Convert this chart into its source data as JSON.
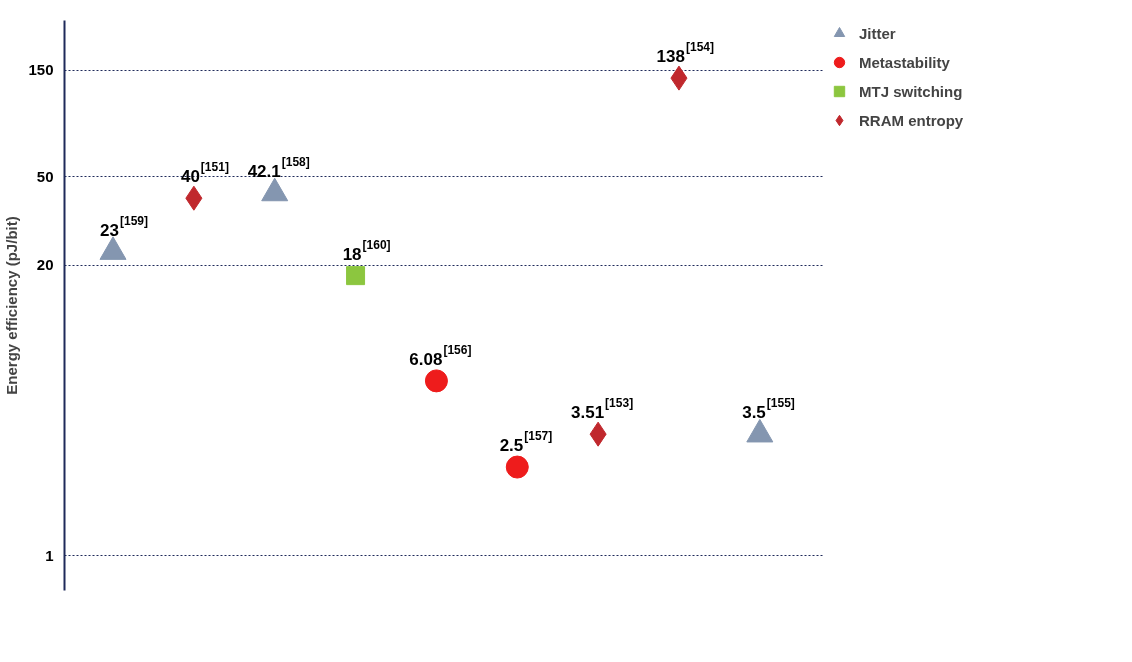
{
  "chart_data": {
    "type": "scatter",
    "ylabel": "Energy efficiency (pJ/bit)",
    "log": "y",
    "ylim": [
      0.7,
      250
    ],
    "yticks": [
      1,
      20,
      50,
      150
    ],
    "grid": "y",
    "legend": "top right",
    "tick_labels": "y",
    "categories": [
      null,
      null,
      null,
      null,
      null,
      null,
      null,
      null,
      null
    ],
    "series": [
      {
        "name": "Jitter",
        "color": "#8496b0",
        "marker": "triangle",
        "values": [
          23,
          null,
          42.1,
          null,
          null,
          null,
          null,
          null,
          3.5
        ],
        "value_labels": [
          "23$^{[159]}$",
          null,
          "42.1$^{[158]}$",
          null,
          null,
          null,
          null,
          null,
          "3.5$^{[155]}$"
        ]
      },
      {
        "name": "Metastability",
        "color": "#ee1c1c",
        "marker": "circle",
        "values": [
          null,
          null,
          null,
          null,
          6.08,
          2.5,
          null,
          null,
          null
        ],
        "value_labels": [
          null,
          null,
          null,
          null,
          "6.08$^{[156]}$",
          "2.5$^{[157]}$",
          null,
          null,
          null
        ]
      },
      {
        "name": "MTJ switching",
        "color": "#8cc63f",
        "marker": "square",
        "values": [
          null,
          null,
          null,
          18,
          null,
          null,
          null,
          null,
          null
        ],
        "value_labels": [
          null,
          null,
          null,
          "18$^{[160]}$",
          null,
          null,
          null,
          null,
          null
        ]
      },
      {
        "name": "RRAM entropy",
        "color": "#c0282d",
        "marker": "diamond",
        "values": [
          null,
          40,
          null,
          null,
          null,
          null,
          3.51,
          138,
          null
        ],
        "value_labels": [
          null,
          "40$^{[151]}$",
          null,
          null,
          null,
          null,
          "3.51$^{[153]}$",
          "138$^{[154]}$",
          null
        ]
      }
    ]
  }
}
